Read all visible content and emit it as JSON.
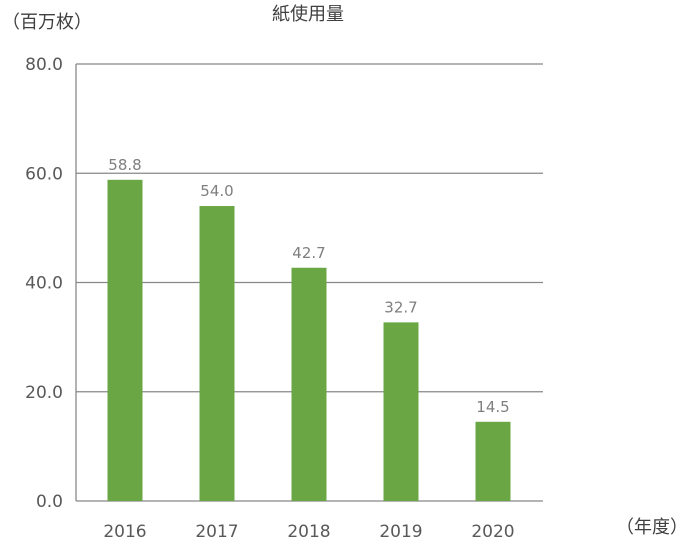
{
  "chart_data": {
    "type": "bar",
    "title": "紙使用量",
    "y_unit": "（百万枚）",
    "x_unit": "（年度）",
    "categories": [
      "2016",
      "2017",
      "2018",
      "2019",
      "2020"
    ],
    "values": [
      58.8,
      54.0,
      42.7,
      32.7,
      14.5
    ],
    "data_labels": [
      "58.8",
      "54.0",
      "42.7",
      "32.7",
      "14.5"
    ],
    "y_ticks": [
      0,
      20,
      40,
      60,
      80
    ],
    "y_tick_labels": [
      "0.0",
      "20.0",
      "40.0",
      "60.0",
      "80.0"
    ],
    "ylim": [
      0,
      80
    ],
    "grid": true,
    "bar_color": "#6aa744"
  }
}
